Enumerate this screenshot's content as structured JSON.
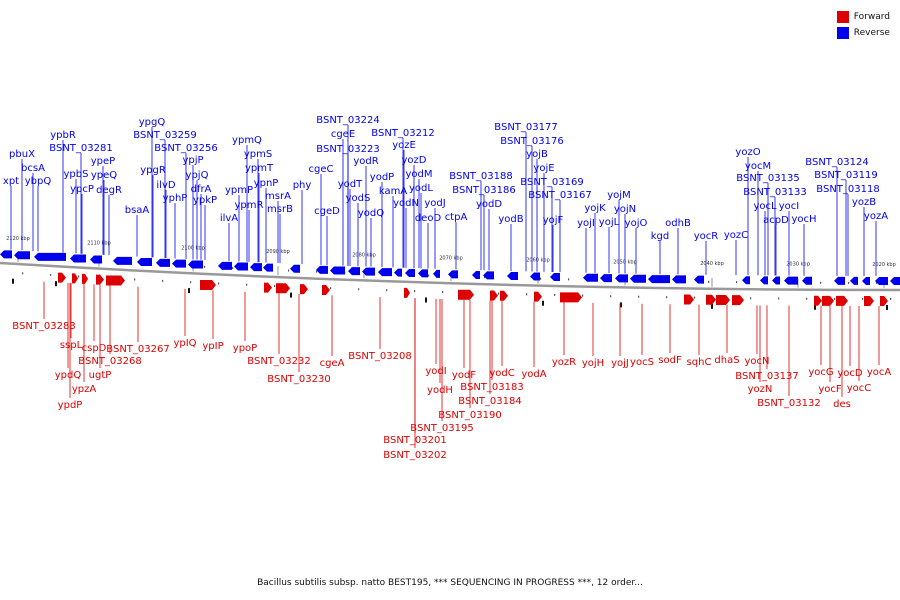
{
  "colors": {
    "forward": "#dd0000",
    "reverse": "#0000ee",
    "backbone": "#999999"
  },
  "legend": {
    "forward": "Forward",
    "reverse": "Reverse"
  },
  "caption": "Bacillus subtilis subsp. natto BEST195, *** SEQUENCING IN PROGRESS ***, 12 order...",
  "ticks": [
    "2120 kbp",
    "2110 kbp",
    "2100 kbp",
    "2090 kbp",
    "2080 kbp",
    "2070 kbp",
    "2060 kbp",
    "2050 kbp",
    "2040 kbp",
    "2030 kbp",
    "2020 kbp"
  ],
  "reverse_genes": [
    "xpt",
    "pbuX",
    "bcsA",
    "ybpQ",
    "ypbR",
    "BSNT_03281",
    "ypbS",
    "ypcP",
    "ypeP",
    "ypeQ",
    "degR",
    "bsaA",
    "ypgQ",
    "BSNT_03259",
    "ypgR",
    "BSNT_03256",
    "ilvD",
    "yphP",
    "ypjP",
    "ypjQ",
    "dfrA",
    "ypkP",
    "ilvA",
    "ypmQ",
    "ypmS",
    "ypmP",
    "ypmT",
    "ypmR",
    "ypnP",
    "msrA",
    "msrB",
    "phy",
    "cgeC",
    "cgeD",
    "BSNT_03224",
    "cgeE",
    "BSNT_03223",
    "yodT",
    "yodR",
    "yodS",
    "yodQ",
    "BSNT_03212",
    "yozE",
    "yodP",
    "yozD",
    "kamA",
    "yodM",
    "yodN",
    "yodL",
    "deoD",
    "yodJ",
    "ctpA",
    "BSNT_03188",
    "BSNT_03186",
    "yodD",
    "yodB",
    "BSNT_03177",
    "BSNT_03176",
    "yojB",
    "yojE",
    "BSNT_03169",
    "BSNT_03167",
    "yojF",
    "yojK",
    "yojI",
    "yojL",
    "yojM",
    "yojN",
    "yojO",
    "kgd",
    "odhB",
    "yocR",
    "yozC",
    "yozO",
    "yocM",
    "BSNT_03135",
    "BSNT_03133",
    "yocL",
    "acpD",
    "yocI",
    "yocH",
    "BSNT_03124",
    "BSNT_03119",
    "BSNT_03118",
    "yozB",
    "yozA"
  ],
  "forward_genes": [
    "BSNT_03283",
    "sspL",
    "ypdQ",
    "cspD",
    "BSNT_03268",
    "ugtP",
    "ypzA",
    "ypdP",
    "BSNT_03267",
    "ypIQ",
    "ypIP",
    "ypoP",
    "BSNT_03232",
    "BSNT_03230",
    "cgeA",
    "BSNT_03208",
    "BSNT_03201",
    "BSNT_03202",
    "yodI",
    "yodH",
    "BSNT_03195",
    "yodF",
    "BSNT_03190",
    "BSNT_03184",
    "BSNT_03183",
    "yodC",
    "yodA",
    "yozR",
    "yojH",
    "yojJ",
    "yocS",
    "sodF",
    "sqhC",
    "dhaS",
    "BSNT_03137",
    "yocN",
    "yozN",
    "BSNT_03132",
    "yocG",
    "yocF",
    "des",
    "yocD",
    "yocC",
    "yocA"
  ]
}
